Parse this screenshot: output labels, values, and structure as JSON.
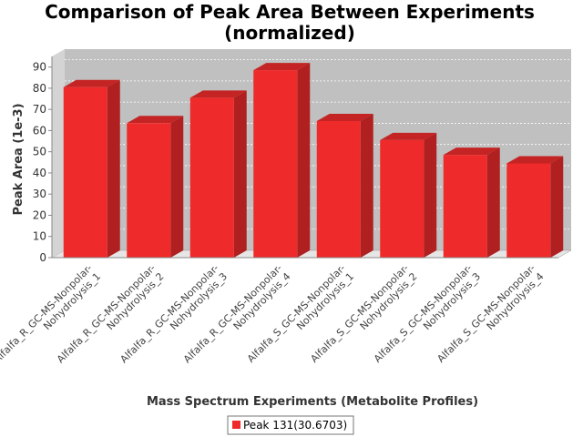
{
  "chart_data": {
    "type": "bar",
    "title": [
      "Comparison of Peak Area Between Experiments",
      "(normalized)"
    ],
    "xlabel": "Mass Spectrum Experiments (Metabolite Profiles)",
    "ylabel": "Peak Area (1e-3)",
    "ylim": [
      0,
      95
    ],
    "yticks": [
      0,
      10,
      20,
      30,
      40,
      50,
      60,
      70,
      80,
      90
    ],
    "grid": true,
    "legend_position": "bottom",
    "categories": [
      [
        "Alfalfa_R_GC-MS-Nonpolar-",
        "Nohydrolysis_1"
      ],
      [
        "Alfalfa_R_GC-MS-Nonpolar-",
        "Nohydrolysis_2"
      ],
      [
        "Alfalfa_R_GC-MS-Nonpolar-",
        "Nohydrolysis_3"
      ],
      [
        "Alfalfa_R_GC-MS-Nonpolar-",
        "Nohydrolysis_4"
      ],
      [
        "Alfalfa_S_GC-MS-Nonpolar-",
        "Nohydrolysis_1"
      ],
      [
        "Alfalfa_S_GC-MS-Nonpolar-",
        "Nohydrolysis_2"
      ],
      [
        "Alfalfa_S_GC-MS-Nonpolar-",
        "Nohydrolysis_3"
      ],
      [
        "Alfalfa_S_GC-MS-Nonpolar-",
        "Nohydrolysis_4"
      ]
    ],
    "series": [
      {
        "name": "Peak 131(30.6703)",
        "color": "#ee2a2a",
        "values": [
          80.5,
          63.5,
          75.5,
          88.5,
          64.5,
          55.5,
          48.5,
          44.5
        ]
      }
    ]
  }
}
